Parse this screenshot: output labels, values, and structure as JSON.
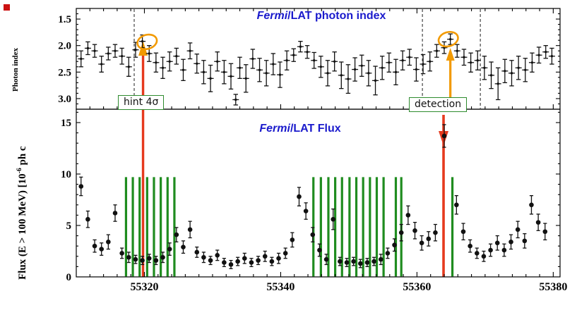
{
  "corner_marker_color": "#cc1111",
  "chart_data": {
    "type": "scatter",
    "description": "Two stacked panels sharing MJD x-axis: Fermi/LAT photon index (inverted y) and Fermi/LAT flux light curve",
    "x": {
      "lim": [
        55310,
        55381
      ],
      "ticks": [
        55320,
        55340,
        55360,
        55380
      ],
      "tick_labels": [
        "55320",
        "55340",
        "55360",
        "55380"
      ],
      "minor_step": 2
    },
    "top_panel": {
      "title_italic": "Fermi",
      "title_rest": "/LAT photon index",
      "title_color": "#1a1acc",
      "ylabel": "Photon index",
      "ylim": [
        1.3,
        3.2
      ],
      "inverted": true,
      "yticks": [
        1.5,
        2.0,
        2.5,
        3.0
      ],
      "ytick_labels": [
        "1.5",
        "2.0",
        "2.5",
        "3.0"
      ],
      "points": [
        [
          55310.7,
          2.25,
          0.15
        ],
        [
          55311.7,
          2.05,
          0.12
        ],
        [
          55312.7,
          2.1,
          0.12
        ],
        [
          55313.7,
          2.35,
          0.15
        ],
        [
          55314.7,
          2.15,
          0.12
        ],
        [
          55315.7,
          2.1,
          0.12
        ],
        [
          55316.7,
          2.2,
          0.15
        ],
        [
          55317.7,
          2.4,
          0.18
        ],
        [
          55318.7,
          2.08,
          0.14
        ],
        [
          55319.7,
          1.92,
          0.12
        ],
        [
          55320.7,
          2.15,
          0.15
        ],
        [
          55321.7,
          2.32,
          0.18
        ],
        [
          55322.7,
          2.42,
          0.2
        ],
        [
          55323.7,
          2.3,
          0.18
        ],
        [
          55324.7,
          2.2,
          0.15
        ],
        [
          55325.7,
          2.46,
          0.2
        ],
        [
          55326.7,
          2.1,
          0.15
        ],
        [
          55327.7,
          2.34,
          0.18
        ],
        [
          55328.7,
          2.5,
          0.22
        ],
        [
          55329.7,
          2.62,
          0.25
        ],
        [
          55330.7,
          2.3,
          0.18
        ],
        [
          55331.7,
          2.5,
          0.22
        ],
        [
          55332.7,
          2.58,
          0.24
        ],
        [
          55333.4,
          3.02,
          0.1
        ],
        [
          55334.0,
          2.42,
          0.2
        ],
        [
          55334.9,
          2.62,
          0.26
        ],
        [
          55335.9,
          2.25,
          0.18
        ],
        [
          55336.9,
          2.46,
          0.22
        ],
        [
          55337.9,
          2.52,
          0.24
        ],
        [
          55338.9,
          2.35,
          0.2
        ],
        [
          55339.9,
          2.55,
          0.24
        ],
        [
          55340.9,
          2.28,
          0.18
        ],
        [
          55341.9,
          2.18,
          0.12
        ],
        [
          55342.9,
          2.02,
          0.1
        ],
        [
          55343.9,
          2.12,
          0.12
        ],
        [
          55344.9,
          2.28,
          0.15
        ],
        [
          55345.9,
          2.4,
          0.2
        ],
        [
          55346.9,
          2.52,
          0.24
        ],
        [
          55347.9,
          2.3,
          0.18
        ],
        [
          55348.9,
          2.56,
          0.25
        ],
        [
          55349.9,
          2.63,
          0.27
        ],
        [
          55350.9,
          2.45,
          0.22
        ],
        [
          55351.9,
          2.38,
          0.2
        ],
        [
          55352.9,
          2.52,
          0.24
        ],
        [
          55353.9,
          2.66,
          0.27
        ],
        [
          55354.9,
          2.42,
          0.22
        ],
        [
          55355.9,
          2.32,
          0.18
        ],
        [
          55356.9,
          2.5,
          0.24
        ],
        [
          55357.9,
          2.28,
          0.18
        ],
        [
          55358.9,
          2.22,
          0.15
        ],
        [
          55359.9,
          2.45,
          0.22
        ],
        [
          55360.9,
          2.35,
          0.18
        ],
        [
          55361.9,
          2.3,
          0.18
        ],
        [
          55362.9,
          2.1,
          0.12
        ],
        [
          55364.0,
          2.04,
          0.11
        ],
        [
          55364.9,
          1.88,
          0.1
        ],
        [
          55365.9,
          2.1,
          0.12
        ],
        [
          55366.9,
          2.22,
          0.15
        ],
        [
          55367.9,
          2.32,
          0.18
        ],
        [
          55368.9,
          2.28,
          0.18
        ],
        [
          55369.9,
          2.42,
          0.22
        ],
        [
          55370.9,
          2.56,
          0.25
        ],
        [
          55371.9,
          2.72,
          0.3
        ],
        [
          55372.9,
          2.48,
          0.22
        ],
        [
          55373.9,
          2.52,
          0.24
        ],
        [
          55374.9,
          2.42,
          0.22
        ],
        [
          55375.9,
          2.46,
          0.22
        ],
        [
          55376.9,
          2.32,
          0.18
        ],
        [
          55377.9,
          2.18,
          0.15
        ],
        [
          55378.9,
          2.12,
          0.12
        ],
        [
          55379.8,
          2.2,
          0.15
        ]
      ]
    },
    "bottom_panel": {
      "title_italic": "Fermi",
      "title_rest": "/LAT Flux",
      "title_color": "#1a1acc",
      "ylabel_parts": {
        "pre": "Flux (E > 100 MeV) [10",
        "sup": "-6",
        "post": " ph c"
      },
      "ylim": [
        0,
        16.3
      ],
      "yticks": [
        0,
        5,
        10,
        15
      ],
      "ytick_labels": [
        "0",
        "5",
        "10",
        "15"
      ],
      "points": [
        [
          55310.7,
          8.8,
          0.9
        ],
        [
          55311.7,
          5.6,
          0.8
        ],
        [
          55312.7,
          3.0,
          0.6
        ],
        [
          55313.7,
          2.7,
          0.6
        ],
        [
          55314.7,
          3.4,
          0.7
        ],
        [
          55315.7,
          6.2,
          0.8
        ],
        [
          55316.7,
          2.3,
          0.5
        ],
        [
          55317.7,
          1.9,
          0.5
        ],
        [
          55318.7,
          1.7,
          0.4
        ],
        [
          55319.7,
          1.6,
          0.4
        ],
        [
          55320.7,
          1.8,
          0.4
        ],
        [
          55321.7,
          1.6,
          0.4
        ],
        [
          55322.7,
          1.9,
          0.5
        ],
        [
          55323.7,
          2.7,
          0.6
        ],
        [
          55324.7,
          4.1,
          0.7
        ],
        [
          55325.7,
          2.9,
          0.6
        ],
        [
          55326.7,
          4.6,
          0.8
        ],
        [
          55327.7,
          2.4,
          0.5
        ],
        [
          55328.7,
          1.9,
          0.5
        ],
        [
          55329.7,
          1.6,
          0.4
        ],
        [
          55330.7,
          2.1,
          0.5
        ],
        [
          55331.7,
          1.4,
          0.4
        ],
        [
          55332.7,
          1.2,
          0.4
        ],
        [
          55333.7,
          1.5,
          0.4
        ],
        [
          55334.7,
          1.8,
          0.5
        ],
        [
          55335.7,
          1.4,
          0.4
        ],
        [
          55336.7,
          1.6,
          0.4
        ],
        [
          55337.7,
          2.0,
          0.5
        ],
        [
          55338.7,
          1.5,
          0.4
        ],
        [
          55339.7,
          1.8,
          0.5
        ],
        [
          55340.7,
          2.3,
          0.5
        ],
        [
          55341.7,
          3.6,
          0.7
        ],
        [
          55342.7,
          7.8,
          0.9
        ],
        [
          55343.7,
          6.4,
          0.8
        ],
        [
          55344.7,
          4.1,
          0.7
        ],
        [
          55345.7,
          2.6,
          0.6
        ],
        [
          55346.7,
          1.7,
          0.5
        ],
        [
          55347.7,
          5.6,
          1.0
        ],
        [
          55348.7,
          1.5,
          0.4
        ],
        [
          55349.7,
          1.4,
          0.4
        ],
        [
          55350.7,
          1.5,
          0.4
        ],
        [
          55351.7,
          1.3,
          0.4
        ],
        [
          55352.7,
          1.4,
          0.4
        ],
        [
          55353.7,
          1.5,
          0.4
        ],
        [
          55354.7,
          1.7,
          0.5
        ],
        [
          55355.7,
          2.3,
          0.5
        ],
        [
          55356.7,
          3.1,
          0.6
        ],
        [
          55357.7,
          4.3,
          0.8
        ],
        [
          55358.7,
          6.0,
          0.9
        ],
        [
          55359.7,
          4.5,
          0.8
        ],
        [
          55360.7,
          3.3,
          0.7
        ],
        [
          55361.7,
          3.7,
          0.7
        ],
        [
          55362.7,
          4.3,
          0.8
        ],
        [
          55364.0,
          13.7,
          1.1
        ],
        [
          55365.8,
          7.0,
          0.9
        ],
        [
          55366.8,
          4.4,
          0.8
        ],
        [
          55367.8,
          3.0,
          0.6
        ],
        [
          55368.8,
          2.3,
          0.5
        ],
        [
          55369.8,
          2.0,
          0.5
        ],
        [
          55370.8,
          2.6,
          0.6
        ],
        [
          55371.8,
          3.3,
          0.7
        ],
        [
          55372.8,
          2.6,
          0.6
        ],
        [
          55373.8,
          3.4,
          0.7
        ],
        [
          55374.8,
          4.6,
          0.8
        ],
        [
          55375.8,
          3.5,
          0.7
        ],
        [
          55376.8,
          7.0,
          0.9
        ],
        [
          55377.8,
          5.3,
          0.8
        ],
        [
          55378.8,
          4.4,
          0.8
        ]
      ],
      "green_bars": {
        "color": "#1f8c1f",
        "top": 9.7,
        "mjd": [
          55317.3,
          55318.3,
          55319.3,
          55320.4,
          55321.4,
          55322.4,
          55323.4,
          55324.4,
          55344.8,
          55345.9,
          55347.0,
          55348.0,
          55349.0,
          55350.1,
          55351.1,
          55352.1,
          55353.1,
          55354.1,
          55355.1,
          55356.9,
          55357.7,
          55365.2
        ]
      }
    },
    "overlays": {
      "dashed_lines_mjd": [
        55318.5,
        55360.8,
        55369.3
      ],
      "hint_line_x": 55319.8,
      "detection_line_x": 55363.9,
      "detection_orange_arrow_x": 55364.9,
      "ellipses": [
        {
          "x": 55320.4,
          "y": 1.93
        },
        {
          "x": 55364.6,
          "y": 1.88
        }
      ],
      "colors": {
        "red": "#e63a1e",
        "orange": "#f29a02",
        "green": "#2e8b2e",
        "dash": "#333333",
        "marker": "#111111"
      }
    },
    "annotations": {
      "hint": {
        "label": "hint 4σ",
        "x": 55320
      },
      "detection": {
        "label": "detection",
        "x": 55362.5
      }
    }
  }
}
